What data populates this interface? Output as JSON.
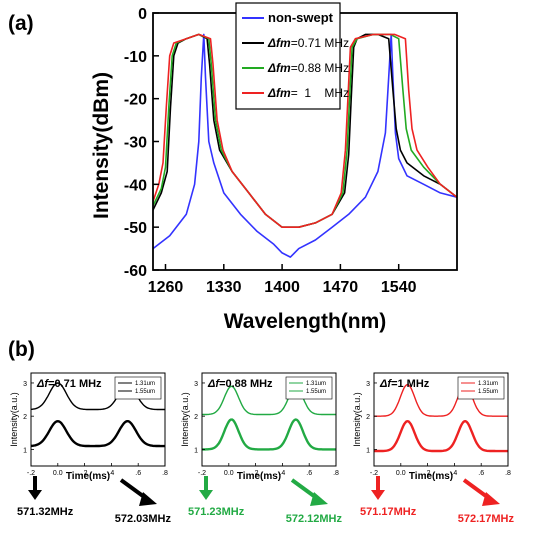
{
  "chart_data": [
    {
      "panel": "(a)",
      "type": "line",
      "xlabel": "Wavelength(nm)",
      "ylabel": "Intensity(dBm)",
      "xlim": [
        1245,
        1610
      ],
      "ylim": [
        -60,
        0
      ],
      "xticks": [
        1260,
        1330,
        1400,
        1470,
        1540
      ],
      "yticks": [
        0,
        -10,
        -20,
        -30,
        -40,
        -50,
        -60
      ],
      "legend_position": "top-right",
      "series": [
        {
          "name": "non-swept",
          "color": "#3333ff",
          "x": [
            1245,
            1265,
            1285,
            1295,
            1300,
            1303,
            1306,
            1308,
            1312,
            1318,
            1330,
            1350,
            1370,
            1390,
            1400,
            1410,
            1420,
            1440,
            1460,
            1480,
            1500,
            1515,
            1524,
            1528,
            1531,
            1533,
            1536,
            1540,
            1550,
            1570,
            1590,
            1610
          ],
          "y": [
            -55,
            -52,
            -47,
            -40,
            -30,
            -15,
            -5,
            -15,
            -30,
            -35,
            -42,
            -47,
            -51,
            -54,
            -56,
            -57,
            -55,
            -53,
            -50,
            -47,
            -43,
            -37,
            -28,
            -15,
            -5,
            -15,
            -28,
            -34,
            -38,
            -40,
            -42,
            -43
          ]
        },
        {
          "name": "Δfm=0.71 MHz",
          "prefix": "Δfm",
          "suffix": "=0.71 MHz",
          "color": "#000000",
          "x": [
            1245,
            1255,
            1262,
            1266,
            1270,
            1275,
            1285,
            1300,
            1310,
            1313,
            1318,
            1325,
            1340,
            1360,
            1380,
            1400,
            1420,
            1440,
            1460,
            1475,
            1480,
            1483,
            1486,
            1490,
            1500,
            1515,
            1528,
            1533,
            1537,
            1542,
            1550,
            1570,
            1590,
            1610
          ],
          "y": [
            -46,
            -42,
            -37,
            -22,
            -10,
            -7,
            -6,
            -5,
            -6,
            -12,
            -25,
            -32,
            -37,
            -42,
            -47,
            -50,
            -50,
            -49,
            -47,
            -42,
            -33,
            -20,
            -8,
            -6,
            -5,
            -5,
            -6,
            -18,
            -27,
            -32,
            -35,
            -38,
            -40,
            -43
          ]
        },
        {
          "name": "Δfm=0.88 MHz",
          "prefix": "Δfm",
          "suffix": "=0.88 MHz",
          "color": "#22aa22",
          "x": [
            1245,
            1255,
            1260,
            1264,
            1268,
            1273,
            1285,
            1300,
            1312,
            1315,
            1320,
            1327,
            1340,
            1360,
            1380,
            1400,
            1420,
            1440,
            1460,
            1473,
            1478,
            1481,
            1484,
            1490,
            1510,
            1530,
            1540,
            1545,
            1549,
            1555,
            1570,
            1590,
            1610
          ],
          "y": [
            -45,
            -41,
            -36,
            -22,
            -10,
            -7,
            -6,
            -5,
            -6,
            -12,
            -25,
            -32,
            -37,
            -42,
            -47,
            -50,
            -50,
            -49,
            -47,
            -42,
            -32,
            -20,
            -8,
            -6,
            -5,
            -5,
            -6,
            -18,
            -27,
            -32,
            -36,
            -40,
            -43
          ]
        },
        {
          "name": "Δfm=1 MHz",
          "prefix": "Δfm",
          "suffix": "=  1    MHz",
          "color": "#ee2222",
          "x": [
            1245,
            1252,
            1257,
            1261,
            1265,
            1270,
            1285,
            1300,
            1314,
            1317,
            1322,
            1329,
            1340,
            1360,
            1380,
            1400,
            1420,
            1440,
            1460,
            1471,
            1476,
            1479,
            1482,
            1488,
            1510,
            1535,
            1548,
            1552,
            1556,
            1562,
            1575,
            1590,
            1610
          ],
          "y": [
            -44,
            -40,
            -35,
            -22,
            -10,
            -7,
            -6,
            -5,
            -6,
            -12,
            -25,
            -32,
            -37,
            -42,
            -47,
            -50,
            -50,
            -49,
            -47,
            -42,
            -32,
            -20,
            -8,
            -6,
            -5,
            -5,
            -6,
            -18,
            -27,
            -32,
            -36,
            -40,
            -43
          ]
        }
      ]
    },
    {
      "panel": "(b)",
      "type": "line",
      "title_prefix": "Δf",
      "title_suffix": "=0.71 MHz",
      "xlabel": "Time(ms)",
      "ylabel": "Intensity(a.u.)",
      "xlim": [
        -0.2,
        0.8
      ],
      "ylim": [
        0.5,
        3.3
      ],
      "xticks": [
        -0.2,
        0.0,
        0.2,
        0.4,
        0.6,
        0.8
      ],
      "yticks": [
        1,
        2,
        3
      ],
      "legend": [
        "1.31um",
        "1.55um"
      ],
      "color": "#000000",
      "series": [
        {
          "name": "1.31um",
          "peaks": [
            0.0,
            0.52
          ],
          "base": 2.2,
          "top": 3.0
        },
        {
          "name": "1.55um",
          "peaks": [
            0.0,
            0.52
          ],
          "base": 1.1,
          "top": 1.85
        }
      ],
      "arrows": [
        {
          "label": "571.32MHz",
          "direction": "down"
        },
        {
          "label": "572.03MHz",
          "direction": "down-right"
        }
      ]
    },
    {
      "panel": "(b)",
      "type": "line",
      "title_prefix": "Δf",
      "title_suffix": "=0.88 MHz",
      "xlabel": "Time(ms)",
      "ylabel": "Intensity(a.u.)",
      "xlim": [
        -0.2,
        0.8
      ],
      "ylim": [
        0.5,
        3.3
      ],
      "xticks": [
        -0.2,
        0.0,
        0.2,
        0.4,
        0.6,
        0.8
      ],
      "yticks": [
        1,
        2,
        3
      ],
      "legend": [
        "1.31um",
        "1.55um"
      ],
      "color": "#22aa44",
      "series": [
        {
          "name": "1.31um",
          "peaks": [
            0.02,
            0.5
          ],
          "base": 2.05,
          "top": 2.9
        },
        {
          "name": "1.55um",
          "peaks": [
            0.02,
            0.5
          ],
          "base": 1.0,
          "top": 1.9
        }
      ],
      "arrows": [
        {
          "label": "571.23MHz",
          "direction": "down"
        },
        {
          "label": "572.12MHz",
          "direction": "down-right"
        }
      ]
    },
    {
      "panel": "(b)",
      "type": "line",
      "title_prefix": "Δf",
      "title_suffix": "=1 MHz",
      "xlabel": "Time(ms)",
      "ylabel": "Intensity(a.u.)",
      "xlim": [
        -0.2,
        0.8
      ],
      "ylim": [
        0.5,
        3.3
      ],
      "xticks": [
        -0.2,
        0.0,
        0.2,
        0.4,
        0.6,
        0.8
      ],
      "yticks": [
        1,
        2,
        3
      ],
      "legend": [
        "1.31um",
        "1.55um"
      ],
      "color": "#ee2222",
      "series": [
        {
          "name": "1.31um",
          "peaks": [
            0.05,
            0.48
          ],
          "base": 2.0,
          "top": 2.95
        },
        {
          "name": "1.55um",
          "peaks": [
            0.05,
            0.48
          ],
          "base": 0.95,
          "top": 1.85
        }
      ],
      "arrows": [
        {
          "label": "571.17MHz",
          "direction": "down"
        },
        {
          "label": "572.17MHz",
          "direction": "down-right"
        }
      ]
    }
  ],
  "labels": {
    "a": "(a)",
    "b": "(b)"
  }
}
